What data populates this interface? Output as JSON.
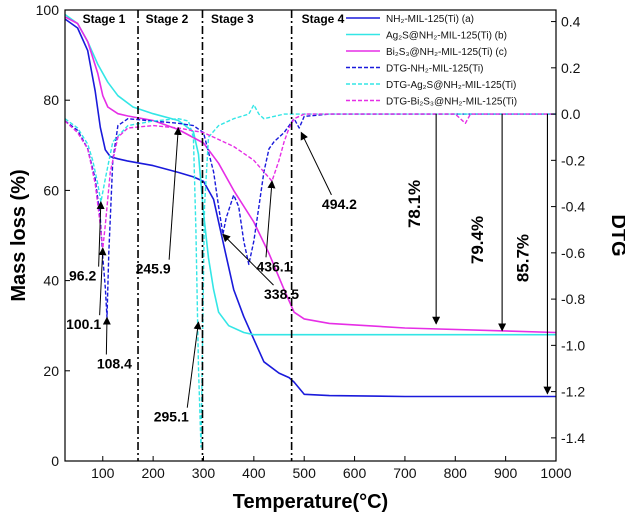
{
  "chart_data": {
    "type": "line",
    "xlabel": "Temperature(°C)",
    "ylabel": "Mass loss (%)",
    "y2label": "DTG",
    "xlim": [
      25,
      1000
    ],
    "ylim": [
      0,
      100
    ],
    "y2lim": [
      -1.5,
      0.45
    ],
    "xticks": [
      "100",
      "200",
      "300",
      "400",
      "500",
      "600",
      "700",
      "800",
      "900",
      "1000"
    ],
    "xtick_values": [
      100,
      200,
      300,
      400,
      500,
      600,
      700,
      800,
      900,
      1000
    ],
    "yticks": [
      "0",
      "20",
      "40",
      "60",
      "80",
      "100"
    ],
    "ytick_values": [
      0,
      20,
      40,
      60,
      80,
      100
    ],
    "y2ticks": [
      "0.4",
      "0.2",
      "0.0",
      "-0.2",
      "-0.4",
      "-0.6",
      "-0.8",
      "-1.0",
      "-1.2",
      "-1.4"
    ],
    "y2tick_values": [
      0.4,
      0.2,
      0.0,
      -0.2,
      -0.4,
      -0.6,
      -0.8,
      -1.0,
      -1.2,
      -1.4
    ],
    "stage_boundaries": [
      170,
      298,
      475
    ],
    "stages": [
      {
        "label": "Stage 1",
        "x": 60
      },
      {
        "label": "Stage 2",
        "x": 185
      },
      {
        "label": "Stage 3",
        "x": 315
      },
      {
        "label": "Stage 4",
        "x": 495
      }
    ],
    "legend": [
      {
        "name": "NH₂-MIL-125(Ti) (a)",
        "color": "#1a1adb",
        "dash": false
      },
      {
        "name": "Ag₂S@NH₂-MIL-125(Ti) (b)",
        "color": "#33e6e6",
        "dash": false
      },
      {
        "name": "Bi₂S₃@NH₂-MIL-125(Ti) (c)",
        "color": "#e62ee6",
        "dash": false
      },
      {
        "name": "DTG-NH₂-MIL-125(Ti)",
        "color": "#1a1adb",
        "dash": true
      },
      {
        "name": "DTG-Ag₂S@NH₂-MIL-125(Ti)",
        "color": "#33e6e6",
        "dash": true
      },
      {
        "name": "DTG-Bi₂S₃@NH₂-MIL-125(Ti)",
        "color": "#e62ee6",
        "dash": true
      }
    ],
    "series": [
      {
        "name": "NH2-MIL-125(Ti) (a)",
        "axis": "left",
        "color": "#1a1adb",
        "dash": false,
        "x": [
          25,
          50,
          70,
          85,
          95,
          105,
          115,
          130,
          150,
          200,
          250,
          280,
          300,
          320,
          340,
          360,
          380,
          400,
          420,
          450,
          470,
          480,
          500,
          550,
          700,
          1000
        ],
        "y": [
          98,
          96,
          91,
          82,
          74,
          69,
          67.5,
          67,
          66.5,
          65.5,
          64,
          63,
          62,
          58,
          48,
          38,
          32,
          27,
          22,
          19.5,
          18.5,
          17.5,
          14.8,
          14.5,
          14.3,
          14.3
        ]
      },
      {
        "name": "Ag2S@NH2-MIL-125(Ti) (b)",
        "axis": "left",
        "color": "#33e6e6",
        "dash": false,
        "x": [
          25,
          50,
          70,
          90,
          110,
          130,
          160,
          200,
          250,
          280,
          290,
          300,
          310,
          320,
          330,
          350,
          380,
          400,
          500,
          700,
          1000
        ],
        "y": [
          99,
          97,
          93,
          88,
          84,
          81,
          78.5,
          77,
          75.5,
          73,
          68,
          55,
          45,
          38,
          33,
          30,
          28.5,
          28,
          28,
          28,
          28
        ]
      },
      {
        "name": "Bi2S3@NH2-MIL-125(Ti) (c)",
        "axis": "left",
        "color": "#e62ee6",
        "dash": false,
        "x": [
          25,
          50,
          70,
          90,
          100,
          110,
          130,
          150,
          200,
          250,
          300,
          330,
          360,
          400,
          430,
          460,
          480,
          500,
          550,
          700,
          1000
        ],
        "y": [
          98.5,
          97,
          93,
          86,
          81,
          78.5,
          77,
          76.5,
          75.5,
          73.5,
          70.5,
          66,
          60,
          53,
          46,
          38,
          33,
          31.5,
          30.5,
          29.5,
          28.5
        ]
      },
      {
        "name": "DTG-NH2-MIL-125(Ti)",
        "axis": "right",
        "color": "#1a1adb",
        "dash": true,
        "x": [
          25,
          50,
          70,
          85,
          95,
          100,
          105,
          108.4,
          112,
          120,
          130,
          150,
          200,
          250,
          280,
          300,
          320,
          330,
          338.5,
          345,
          360,
          370,
          380,
          390,
          400,
          410,
          420,
          430,
          440,
          450,
          460,
          470,
          480,
          490,
          500,
          550,
          1000
        ],
        "y": [
          -0.03,
          -0.07,
          -0.15,
          -0.28,
          -0.45,
          -0.62,
          -0.75,
          -0.88,
          -0.6,
          -0.2,
          -0.05,
          -0.02,
          -0.03,
          -0.04,
          -0.05,
          -0.08,
          -0.25,
          -0.4,
          -0.52,
          -0.45,
          -0.35,
          -0.4,
          -0.55,
          -0.65,
          -0.55,
          -0.4,
          -0.25,
          -0.15,
          -0.12,
          -0.1,
          -0.08,
          -0.05,
          -0.02,
          -0.06,
          -0.01,
          0,
          0
        ]
      },
      {
        "name": "DTG-Ag2S@NH2-MIL-125(Ti)",
        "axis": "right",
        "color": "#33e6e6",
        "dash": true,
        "x": [
          25,
          50,
          70,
          80,
          90,
          96.2,
          105,
          120,
          150,
          200,
          250,
          270,
          280,
          285,
          290,
          295.1,
          298,
          302,
          310,
          330,
          360,
          390,
          400,
          410,
          420,
          440,
          460,
          500,
          700,
          1000
        ],
        "y": [
          -0.02,
          -0.06,
          -0.13,
          -0.2,
          -0.3,
          -0.38,
          -0.28,
          -0.12,
          -0.05,
          -0.03,
          -0.02,
          -0.03,
          -0.1,
          -0.5,
          -1.1,
          -1.44,
          -1.0,
          -0.4,
          -0.1,
          -0.05,
          -0.02,
          0.0,
          0.04,
          0.0,
          -0.02,
          -0.01,
          0,
          0,
          0,
          0
        ]
      },
      {
        "name": "DTG-Bi2S3@NH2-MIL-125(Ti)",
        "axis": "right",
        "color": "#e62ee6",
        "dash": true,
        "x": [
          25,
          50,
          70,
          85,
          95,
          100.1,
          105,
          115,
          130,
          150,
          200,
          250,
          300,
          330,
          360,
          380,
          400,
          420,
          436.1,
          450,
          460,
          470,
          480,
          500,
          600,
          800,
          820,
          830,
          1000
        ],
        "y": [
          -0.03,
          -0.08,
          -0.15,
          -0.3,
          -0.48,
          -0.58,
          -0.48,
          -0.25,
          -0.1,
          -0.06,
          -0.05,
          -0.06,
          -0.08,
          -0.11,
          -0.14,
          -0.17,
          -0.2,
          -0.25,
          -0.29,
          -0.2,
          -0.12,
          -0.06,
          -0.02,
          0,
          0,
          0,
          -0.04,
          0,
          0
        ]
      }
    ],
    "peak_labels": [
      {
        "text": "96.2",
        "x": 96.2,
        "y": -0.38,
        "tx": 60,
        "ty": -0.72
      },
      {
        "text": "100.1",
        "x": 100.1,
        "y": -0.58,
        "tx": 62,
        "ty": -0.93
      },
      {
        "text": "108.4",
        "x": 108.4,
        "y": -0.88,
        "tx": 123,
        "ty": -1.1
      },
      {
        "text": "245.9",
        "x": 250,
        "y": -0.06,
        "tx": 200,
        "ty": -0.69
      },
      {
        "text": "295.1",
        "x": 290,
        "y": -0.9,
        "tx": 236,
        "ty": -1.33
      },
      {
        "text": "338.5",
        "x": 338.5,
        "y": -0.52,
        "tx": 455,
        "ty": -0.8
      },
      {
        "text": "436.1",
        "x": 436.1,
        "y": -0.29,
        "tx": 440,
        "ty": -0.68
      },
      {
        "text": "494.2",
        "x": 494.2,
        "y": -0.08,
        "tx": 570,
        "ty": -0.41
      }
    ],
    "loss_arrows": [
      {
        "text": "78.1%",
        "x": 762,
        "from_y": 77,
        "to_y": 30,
        "tx": 730,
        "ty": 57
      },
      {
        "text": "79.4%",
        "x": 893,
        "from_y": 77,
        "to_y": 28.5,
        "tx": 855,
        "ty": 49
      },
      {
        "text": "85.7%",
        "x": 983,
        "from_y": 77,
        "to_y": 14.5,
        "tx": 945,
        "ty": 45
      }
    ]
  }
}
